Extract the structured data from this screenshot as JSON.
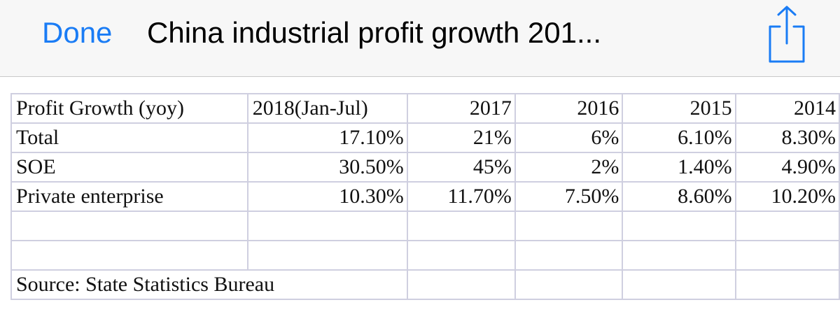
{
  "navbar": {
    "done_label": "Done",
    "title": "China industrial profit growth 201...",
    "share_icon": "share-icon",
    "accent_color": "#1a7cf5"
  },
  "table": {
    "header": [
      "Profit Growth (yoy)",
      "2018(Jan-Jul)",
      "2017",
      "2016",
      "2015",
      "2014"
    ],
    "rows": [
      [
        "Total",
        "17.10%",
        "21%",
        "6%",
        "6.10%",
        "8.30%"
      ],
      [
        "SOE",
        "30.50%",
        "45%",
        "2%",
        "1.40%",
        "4.90%"
      ],
      [
        "Private enterprise",
        "10.30%",
        "11.70%",
        "7.50%",
        "8.60%",
        "10.20%"
      ]
    ],
    "source": "Source: State Statistics Bureau"
  }
}
